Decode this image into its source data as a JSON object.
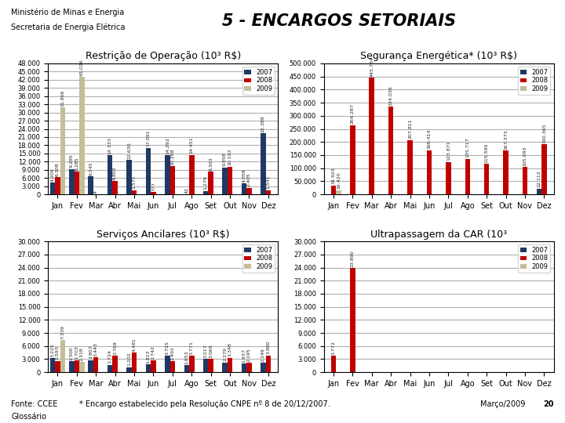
{
  "title": "5 - ENCARGOS SETORIAIS",
  "annotations": [
    "Ministério de Minas e Energia",
    "Secretaria de Energia Elétrica",
    "Fonte: CCEE",
    "* Encargo estabelecido pela Resolução CNPE nº 8 de 20/12/2007.",
    "Março/2009",
    "20",
    "Glossário"
  ],
  "chart_data": [
    {
      "type": "bar",
      "title": "Restrição de Operação (10³ R$)",
      "categories": [
        "Jan",
        "Fev",
        "Mar",
        "Abr",
        "Mai",
        "Jun",
        "Jul",
        "Ago",
        "Set",
        "Out",
        "Nov",
        "Dez"
      ],
      "series": [
        {
          "name": "2007",
          "color": "#1F3864",
          "values": [
            4209,
            9285,
            6545,
            14333,
            12630,
            17091,
            14292,
            42,
            1279,
            9858,
            4058,
            22388
          ],
          "value_labels": [
            "4.209",
            "9.285",
            "6.545",
            "14.333",
            "12.630",
            "17.091",
            "14.292",
            "42",
            "1.279",
            "9.858",
            "4.058",
            "22.388"
          ]
        },
        {
          "name": "2008",
          "color": "#C00000",
          "values": [
            6308,
            8285,
            4,
            4802,
            1571,
            777,
            10288,
            14451,
            8303,
            10192,
            2405,
            1541
          ],
          "value_labels": [
            "6.308",
            "8.285",
            "4",
            "4.802",
            "1.571",
            "777",
            "10.288",
            "14.451",
            "8.303",
            "10.192",
            "2.405",
            "1.541"
          ]
        },
        {
          "name": "2009",
          "color": "#C4BD97",
          "values": [
            31866,
            43026,
            0,
            0,
            0,
            0,
            0,
            0,
            0,
            0,
            0,
            0
          ],
          "value_labels": [
            "31.866",
            "43.026",
            null,
            null,
            null,
            null,
            null,
            null,
            null,
            null,
            null,
            null
          ]
        }
      ],
      "ylim": [
        0,
        48000
      ],
      "yticks": [
        0,
        {
          "value": 3000,
          "label": "3.000"
        },
        {
          "value": 6000,
          "label": "6.000"
        },
        {
          "value": 9000,
          "label": "9.000"
        },
        {
          "value": 12000,
          "label": "12.000"
        },
        {
          "value": 15000,
          "label": "15.000"
        },
        {
          "value": 18000,
          "label": "18.000"
        },
        {
          "value": 21000,
          "label": "21.000"
        },
        {
          "value": 24000,
          "label": "24.000"
        },
        {
          "value": 27000,
          "label": "27.000"
        },
        {
          "value": 30000,
          "label": "30.000"
        },
        {
          "value": 33000,
          "label": "33.000"
        },
        {
          "value": 36000,
          "label": "36.000"
        },
        {
          "value": 39000,
          "label": "39.000"
        },
        {
          "value": 42000,
          "label": "42.000"
        },
        {
          "value": 45000,
          "label": "45.000"
        },
        {
          "value": 48000,
          "label": "48.000"
        }
      ],
      "grid": true,
      "legend": "upper right",
      "data_labels": true
    },
    {
      "type": "bar",
      "title": "Segurança Energética* (10³ R$)",
      "categories": [
        "Jan",
        "Fev",
        "Mar",
        "Abr",
        "Mai",
        "Jun",
        "Jul",
        "Ago",
        "Set",
        "Out",
        "Nov",
        "Dez"
      ],
      "series": [
        {
          "name": "2007",
          "color": "#1F3864",
          "values": [
            0,
            0,
            0,
            0,
            0,
            0,
            0,
            0,
            0,
            0,
            0,
            22112
          ],
          "value_labels": [
            null,
            null,
            null,
            null,
            null,
            null,
            null,
            null,
            null,
            null,
            null,
            "22.112"
          ]
        },
        {
          "name": "2008",
          "color": "#C00000",
          "values": [
            34503,
            264287,
            445734,
            334036,
            207811,
            168414,
            123871,
            135717,
            115590,
            167373,
            105093,
            190365
          ],
          "value_labels": [
            "34.503",
            "264.287",
            "445.734",
            "334.036",
            "207.811",
            "168.414",
            "123.871",
            "135.717",
            "115.590",
            "167.373",
            "105.093",
            "190.365"
          ]
        },
        {
          "name": "2009",
          "color": "#C4BD97",
          "values": [
            16420,
            0,
            0,
            0,
            0,
            0,
            0,
            0,
            0,
            0,
            0,
            0
          ],
          "value_labels": [
            "16.420",
            null,
            null,
            null,
            null,
            null,
            null,
            null,
            null,
            null,
            null,
            null
          ]
        }
      ],
      "ylim": [
        0,
        500000
      ],
      "yticks": [
        0,
        {
          "value": 50000,
          "label": "50.000"
        },
        {
          "value": 100000,
          "label": "100.000"
        },
        {
          "value": 150000,
          "label": "150.000"
        },
        {
          "value": 200000,
          "label": "200.000"
        },
        {
          "value": 250000,
          "label": "250.000"
        },
        {
          "value": 300000,
          "label": "300.000"
        },
        {
          "value": 350000,
          "label": "350.000"
        },
        {
          "value": 400000,
          "label": "400.000"
        },
        {
          "value": 450000,
          "label": "450.000"
        },
        {
          "value": 500000,
          "label": "500.000"
        }
      ],
      "grid": true,
      "legend": "upper right",
      "data_labels": true
    },
    {
      "type": "bar",
      "title": "Serviços Ancilares (10³ R$)",
      "categories": [
        "Jan",
        "Fev",
        "Mar",
        "Abr",
        "Mai",
        "Jun",
        "Jul",
        "Ago",
        "Set",
        "Out",
        "Nov",
        "Dez"
      ],
      "series": [
        {
          "name": "2007",
          "color": "#1F3864",
          "values": [
            3225,
            2500,
            2807,
            1724,
            1202,
            1813,
            3725,
            1653,
            3017,
            2279,
            1937,
            2149
          ],
          "value_labels": [
            "3.225",
            "2.500",
            "2.807",
            "1.724",
            "1.202",
            "1.813",
            "3.725",
            "1.653",
            "3.017",
            "2.279",
            "1.937",
            "2.149"
          ]
        },
        {
          "name": "2008",
          "color": "#C00000",
          "values": [
            2593,
            2703,
            3443,
            3769,
            4481,
            2742,
            2492,
            3771,
            3069,
            3348,
            2195,
            3880
          ],
          "value_labels": [
            "2.593",
            "2.703",
            "3.443",
            "3.769",
            "4.481",
            "2.742",
            "2.492",
            "3.771",
            "3.069",
            "3.348",
            "2.195",
            "3.880"
          ]
        },
        {
          "name": "2009",
          "color": "#C4BD97",
          "values": [
            7339,
            2318,
            0,
            0,
            0,
            0,
            0,
            0,
            0,
            0,
            0,
            0
          ],
          "value_labels": [
            "7.339",
            "2.318",
            null,
            null,
            null,
            null,
            null,
            null,
            null,
            null,
            null,
            null
          ]
        }
      ],
      "ylim": [
        0,
        30000
      ],
      "yticks": [
        0,
        {
          "value": 3000,
          "label": "3.000"
        },
        {
          "value": 6000,
          "label": "6.000"
        },
        {
          "value": 9000,
          "label": "9.000"
        },
        {
          "value": 12000,
          "label": "12.000"
        },
        {
          "value": 15000,
          "label": "15.000"
        },
        {
          "value": 18000,
          "label": "18.000"
        },
        {
          "value": 21000,
          "label": "21.000"
        },
        {
          "value": 24000,
          "label": "24.000"
        },
        {
          "value": 27000,
          "label": "27.000"
        },
        {
          "value": 30000,
          "label": "30.000"
        }
      ],
      "grid": true,
      "legend": "upper right",
      "data_labels": true
    },
    {
      "type": "bar",
      "title": "Ultrapassagem da CAR (10³",
      "categories": [
        "Jan",
        "Fev",
        "Mar",
        "Abr",
        "Mai",
        "Jun",
        "Jul",
        "Ago",
        "Set",
        "Out",
        "Nov",
        "Dez"
      ],
      "series": [
        {
          "name": "2007",
          "color": "#1F3864",
          "values": [
            0,
            0,
            0,
            0,
            0,
            0,
            0,
            0,
            0,
            0,
            0,
            0
          ],
          "value_labels": [
            null,
            null,
            null,
            null,
            null,
            null,
            null,
            null,
            null,
            null,
            null,
            null
          ]
        },
        {
          "name": "2008",
          "color": "#C00000",
          "values": [
            3772,
            23890,
            0,
            0,
            0,
            0,
            0,
            0,
            0,
            0,
            0,
            0
          ],
          "value_labels": [
            "3.772",
            "23.890",
            null,
            null,
            null,
            null,
            null,
            null,
            null,
            null,
            null,
            null
          ]
        },
        {
          "name": "2009",
          "color": "#C4BD97",
          "values": [
            0,
            0,
            0,
            0,
            0,
            0,
            0,
            0,
            0,
            0,
            0,
            0
          ],
          "value_labels": [
            null,
            null,
            null,
            null,
            null,
            null,
            null,
            null,
            null,
            null,
            null,
            null
          ]
        }
      ],
      "ylim": [
        0,
        30000
      ],
      "yticks": [
        0,
        {
          "value": 3000,
          "label": "3.000"
        },
        {
          "value": 6000,
          "label": "6.000"
        },
        {
          "value": 9000,
          "label": "9.000"
        },
        {
          "value": 12000,
          "label": "12.000"
        },
        {
          "value": 15000,
          "label": "15.000"
        },
        {
          "value": 18000,
          "label": "18.000"
        },
        {
          "value": 21000,
          "label": "21.000"
        },
        {
          "value": 24000,
          "label": "24.000"
        },
        {
          "value": 27000,
          "label": "27.000"
        },
        {
          "value": 30000,
          "label": "30.000"
        }
      ],
      "grid": true,
      "legend": "upper right",
      "data_labels": true
    }
  ]
}
